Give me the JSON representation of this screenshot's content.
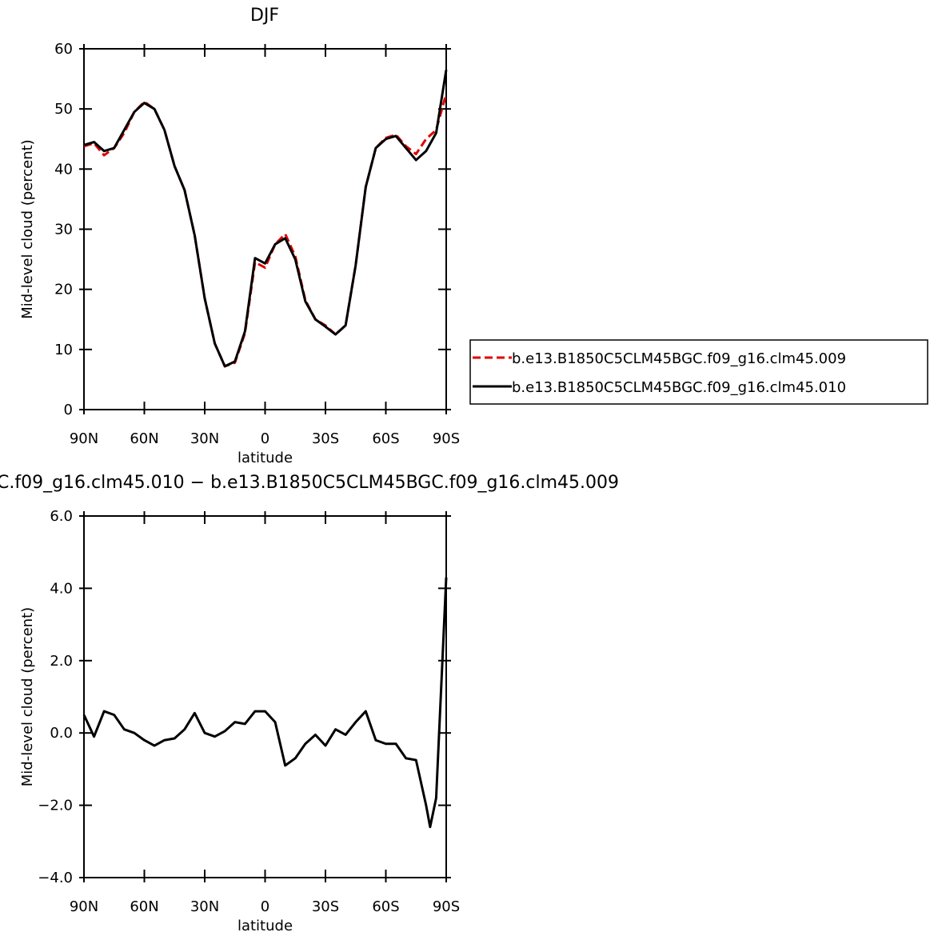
{
  "chart_data": [
    {
      "type": "line",
      "title": "DJF",
      "xlabel": "latitude",
      "ylabel": "Mid-level cloud (percent)",
      "xlim": [
        90,
        -90
      ],
      "xticks": [
        {
          "value": 90,
          "label": "90N"
        },
        {
          "value": 60,
          "label": "60N"
        },
        {
          "value": 30,
          "label": "30N"
        },
        0,
        {
          "value": -30,
          "label": "30S"
        },
        {
          "value": -60,
          "label": "60S"
        },
        {
          "value": -90,
          "label": "90S"
        }
      ],
      "ylim": [
        0,
        60
      ],
      "yticks": [
        0,
        10,
        20,
        30,
        40,
        50,
        60
      ],
      "legend": "right",
      "x": [
        90,
        85,
        80,
        75,
        70,
        65,
        60,
        55,
        50,
        45,
        40,
        35,
        30,
        25,
        20,
        15,
        10,
        5,
        0,
        -5,
        -10,
        -15,
        -20,
        -25,
        -30,
        -35,
        -40,
        -45,
        -50,
        -55,
        -60,
        -65,
        -70,
        -75,
        -80,
        -85,
        -90
      ],
      "series": [
        {
          "name": "b.e13.B1850C5CLM45BGC.f09_g16.clm45.009",
          "color": "#e00000",
          "line_style": "dashed",
          "values": [
            43.8,
            44.3,
            42.3,
            43.5,
            46.0,
            49.5,
            51.2,
            50.0,
            46.5,
            40.5,
            36.5,
            29,
            18.5,
            11,
            7.2,
            7.8,
            12.7,
            24.5,
            23.6,
            27.5,
            29.2,
            25.5,
            18.2,
            15,
            14,
            12.5,
            14,
            24,
            37,
            43.5,
            45.2,
            45.7,
            43.8,
            42.5,
            45,
            46.5,
            52.5
          ]
        },
        {
          "name": "b.e13.B1850C5CLM45BGC.f09_g16.clm45.010",
          "color": "#000000",
          "line_style": "solid",
          "values": [
            44,
            44.5,
            43,
            43.5,
            46.5,
            49.5,
            51,
            50,
            46.5,
            40.5,
            36.5,
            29,
            18.5,
            11,
            7.2,
            8,
            13,
            25.2,
            24.3,
            27.5,
            28.5,
            25,
            18,
            15,
            13.8,
            12.5,
            14,
            24,
            37,
            43.5,
            45,
            45.5,
            43.5,
            41.5,
            43,
            46,
            56.5
          ]
        }
      ]
    },
    {
      "type": "line",
      "title": "C.f09_g16.clm45.010 − b.e13.B1850C5CLM45BGC.f09_g16.clm45.009",
      "xlabel": "latitude",
      "ylabel": "Mid-level cloud (percent)",
      "xlim": [
        90,
        -90
      ],
      "xticks": [
        {
          "value": 90,
          "label": "90N"
        },
        {
          "value": 60,
          "label": "60N"
        },
        {
          "value": 30,
          "label": "30N"
        },
        0,
        {
          "value": -30,
          "label": "30S"
        },
        {
          "value": -60,
          "label": "60S"
        },
        {
          "value": -90,
          "label": "90S"
        }
      ],
      "ylim": [
        -4,
        6
      ],
      "yticks": [
        {
          "value": -4,
          "label": "−4.0"
        },
        {
          "value": -2,
          "label": "−2.0"
        },
        {
          "value": 0,
          "label": "0.0"
        },
        {
          "value": 2,
          "label": "2.0"
        },
        {
          "value": 4,
          "label": "4.0"
        },
        {
          "value": 6,
          "label": "6.0"
        }
      ],
      "x": [
        90,
        85,
        80,
        75,
        70,
        65,
        60,
        55,
        50,
        45,
        40,
        35,
        30,
        25,
        20,
        15,
        10,
        5,
        0,
        -5,
        -10,
        -15,
        -20,
        -25,
        -30,
        -35,
        -40,
        -45,
        -50,
        -55,
        -60,
        -65,
        -70,
        -75,
        -80,
        -82,
        -85,
        -90
      ],
      "series": [
        {
          "color": "#000000",
          "line_style": "solid",
          "values": [
            0.5,
            -0.1,
            0.6,
            0.5,
            0.1,
            0.0,
            -0.2,
            -0.35,
            -0.2,
            -0.15,
            0.1,
            0.55,
            0.0,
            -0.1,
            0.05,
            0.3,
            0.25,
            0.6,
            0.6,
            0.3,
            -0.9,
            -0.7,
            -0.3,
            -0.05,
            -0.35,
            0.1,
            -0.05,
            0.3,
            0.6,
            -0.2,
            -0.3,
            -0.3,
            -0.7,
            -0.75,
            -2.0,
            -2.6,
            -1.8,
            4.3
          ]
        }
      ]
    }
  ]
}
